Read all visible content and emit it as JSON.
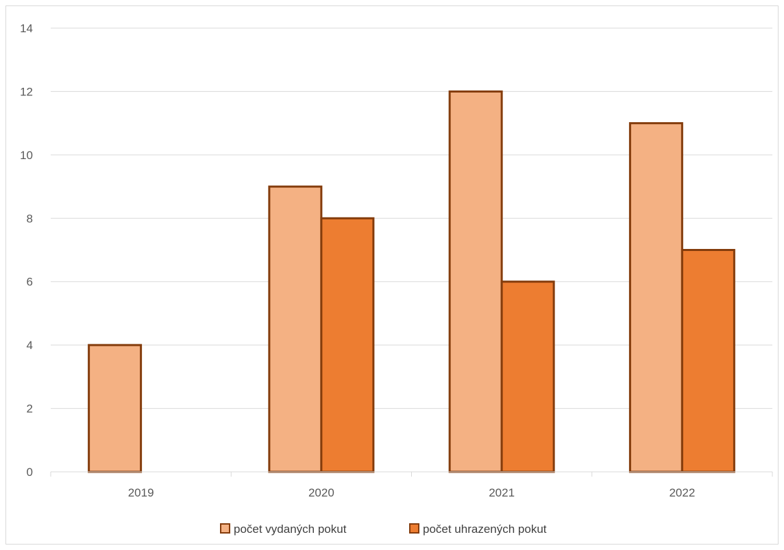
{
  "chart_data": {
    "type": "bar",
    "title": "",
    "xlabel": "",
    "ylabel": "",
    "categories": [
      "2019",
      "2020",
      "2021",
      "2022"
    ],
    "series": [
      {
        "name": "počet vydaných pokut",
        "values": [
          4,
          9,
          12,
          11
        ],
        "color": "#f4b183"
      },
      {
        "name": "počet uhrazených pokut",
        "values": [
          0,
          8,
          6,
          7
        ],
        "color": "#ed7d31"
      }
    ],
    "ylim": [
      0,
      14
    ],
    "yticks": [
      0,
      2,
      4,
      6,
      8,
      10,
      12,
      14
    ],
    "bar_border_color": "#843c0c",
    "gridlines": true,
    "legend_position": "bottom"
  }
}
